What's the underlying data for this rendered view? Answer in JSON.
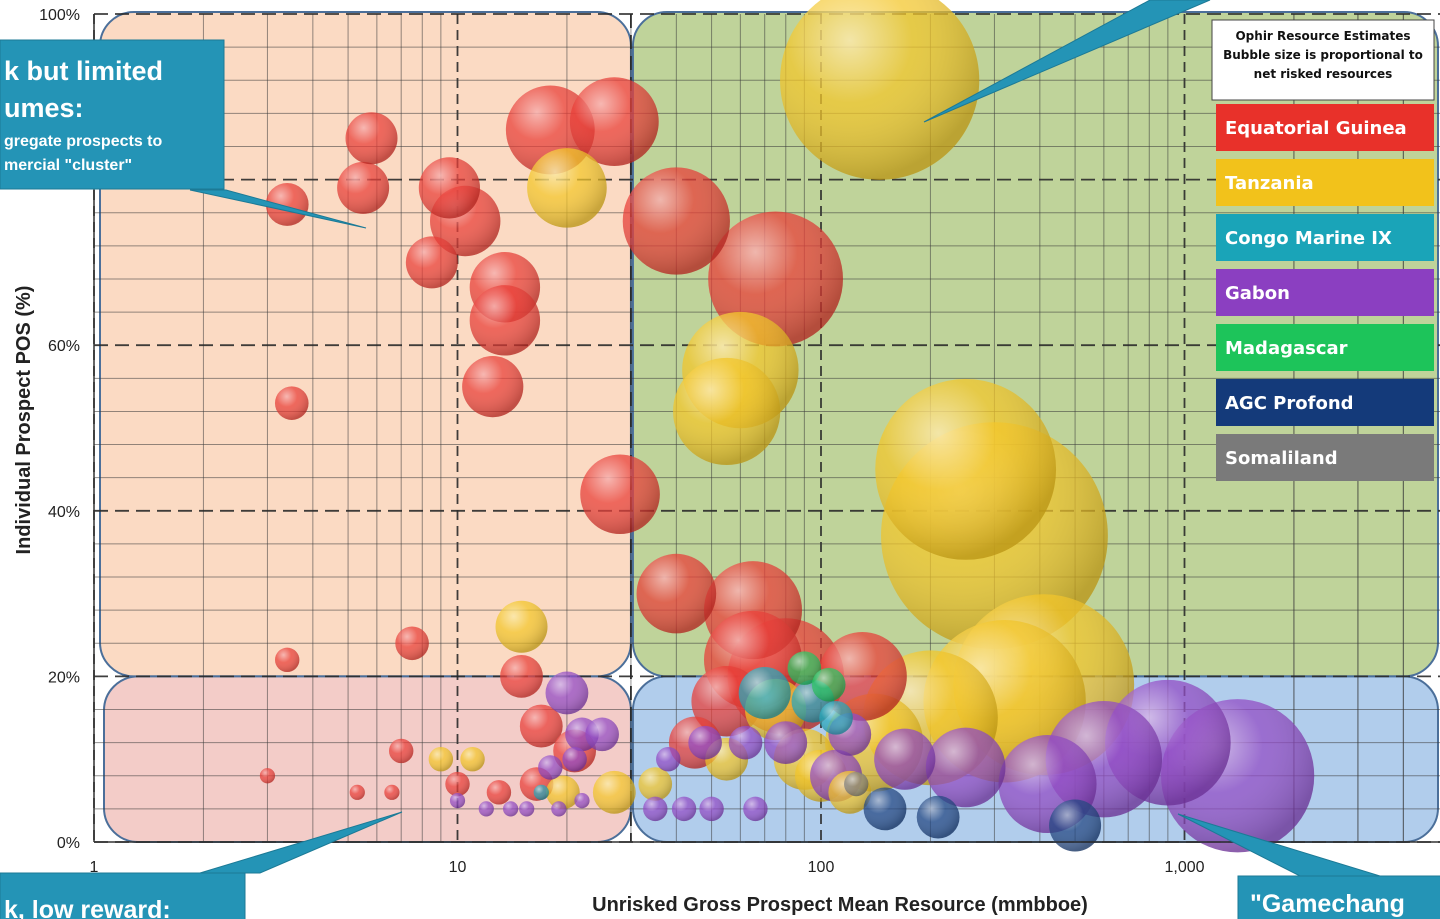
{
  "chart_data": {
    "type": "scatter",
    "subtype": "bubble",
    "title": "",
    "xlabel": "Unrisked Gross Prospect Mean Resource (mmbboe)",
    "ylabel": "Individual Prospect POS (%)",
    "x_scale": "log",
    "xlim": [
      1,
      4000
    ],
    "ylim": [
      0,
      100
    ],
    "x_ticks": [
      "1",
      "10",
      "100",
      "1,000"
    ],
    "y_ticks": [
      "0%",
      "20%",
      "40%",
      "60%",
      "100%"
    ],
    "grid": true,
    "legend_placement": "top-right",
    "legend_title": [
      "Ophir Resource Estimates",
      "Bubble size is proportional to",
      "net risked resources"
    ],
    "series": [
      {
        "name": "Equatorial Guinea",
        "color": "#e8312a"
      },
      {
        "name": "Tanzania",
        "color": "#f2c21b"
      },
      {
        "name": "Congo Marine IX",
        "color": "#1aa4b8"
      },
      {
        "name": "Gabon",
        "color": "#8b3fc1"
      },
      {
        "name": "Madagascar",
        "color": "#1dc45a"
      },
      {
        "name": "AGC Profond",
        "color": "#143a7a"
      },
      {
        "name": "Somaliland",
        "color": "#7a7a7a"
      }
    ],
    "quadrants": [
      {
        "name": "top-left",
        "fill": "#fbd6bd"
      },
      {
        "name": "top-right",
        "fill": "#b8ce8f"
      },
      {
        "name": "bottom-left",
        "fill": "#f2c6c2"
      },
      {
        "name": "bottom-right",
        "fill": "#a9c8ea"
      }
    ],
    "callouts": [
      {
        "lines": [
          "k but limited",
          "umes:"
        ],
        "sub": [
          "gregate prospects to",
          "mercial \"cluster\""
        ]
      },
      {
        "lines": [
          "k, low reward:"
        ]
      },
      {
        "lines": [
          "\"Gamechang"
        ]
      },
      {
        "lines": []
      }
    ],
    "points": [
      {
        "series": "Equatorial Guinea",
        "x": 3.4,
        "y": 77,
        "size": 4
      },
      {
        "series": "Equatorial Guinea",
        "x": 5.5,
        "y": 79,
        "size": 5
      },
      {
        "series": "Equatorial Guinea",
        "x": 5.8,
        "y": 85,
        "size": 5
      },
      {
        "series": "Equatorial Guinea",
        "x": 9.5,
        "y": 79,
        "size": 6
      },
      {
        "series": "Equatorial Guinea",
        "x": 10.5,
        "y": 75,
        "size": 7
      },
      {
        "series": "Equatorial Guinea",
        "x": 8.5,
        "y": 70,
        "size": 5
      },
      {
        "series": "Equatorial Guinea",
        "x": 18,
        "y": 86,
        "size": 9
      },
      {
        "series": "Equatorial Guinea",
        "x": 27,
        "y": 87,
        "size": 9
      },
      {
        "series": "Equatorial Guinea",
        "x": 13.5,
        "y": 67,
        "size": 7
      },
      {
        "series": "Equatorial Guinea",
        "x": 13.5,
        "y": 63,
        "size": 7
      },
      {
        "series": "Equatorial Guinea",
        "x": 12.5,
        "y": 55,
        "size": 6
      },
      {
        "series": "Equatorial Guinea",
        "x": 3.5,
        "y": 53,
        "size": 3
      },
      {
        "series": "Equatorial Guinea",
        "x": 28,
        "y": 42,
        "size": 8
      },
      {
        "series": "Equatorial Guinea",
        "x": 40,
        "y": 75,
        "size": 11
      },
      {
        "series": "Equatorial Guinea",
        "x": 75,
        "y": 68,
        "size": 14
      },
      {
        "series": "Equatorial Guinea",
        "x": 40,
        "y": 30,
        "size": 8
      },
      {
        "series": "Equatorial Guinea",
        "x": 65,
        "y": 28,
        "size": 10
      },
      {
        "series": "Equatorial Guinea",
        "x": 65,
        "y": 22,
        "size": 10
      },
      {
        "series": "Equatorial Guinea",
        "x": 80,
        "y": 20,
        "size": 12
      },
      {
        "series": "Equatorial Guinea",
        "x": 7.5,
        "y": 24,
        "size": 3
      },
      {
        "series": "Equatorial Guinea",
        "x": 3.4,
        "y": 22,
        "size": 2
      },
      {
        "series": "Equatorial Guinea",
        "x": 15,
        "y": 20,
        "size": 4
      },
      {
        "series": "Equatorial Guinea",
        "x": 17,
        "y": 14,
        "size": 4
      },
      {
        "series": "Equatorial Guinea",
        "x": 7,
        "y": 11,
        "size": 2
      },
      {
        "series": "Equatorial Guinea",
        "x": 21,
        "y": 11,
        "size": 4
      },
      {
        "series": "Equatorial Guinea",
        "x": 3,
        "y": 8,
        "size": 1
      },
      {
        "series": "Equatorial Guinea",
        "x": 10,
        "y": 7,
        "size": 2
      },
      {
        "series": "Equatorial Guinea",
        "x": 16.5,
        "y": 7,
        "size": 3
      },
      {
        "series": "Equatorial Guinea",
        "x": 5.3,
        "y": 6,
        "size": 1
      },
      {
        "series": "Equatorial Guinea",
        "x": 6.6,
        "y": 6,
        "size": 1
      },
      {
        "series": "Equatorial Guinea",
        "x": 13,
        "y": 6,
        "size": 2
      },
      {
        "series": "Equatorial Guinea",
        "x": 55,
        "y": 17,
        "size": 7
      },
      {
        "series": "Equatorial Guinea",
        "x": 130,
        "y": 20,
        "size": 9
      },
      {
        "series": "Equatorial Guinea",
        "x": 45,
        "y": 12,
        "size": 5
      },
      {
        "series": "Tanzania",
        "x": 20,
        "y": 79,
        "size": 8
      },
      {
        "series": "Tanzania",
        "x": 15,
        "y": 26,
        "size": 5
      },
      {
        "series": "Tanzania",
        "x": 9,
        "y": 10,
        "size": 2
      },
      {
        "series": "Tanzania",
        "x": 11,
        "y": 10,
        "size": 2
      },
      {
        "series": "Tanzania",
        "x": 19.5,
        "y": 6,
        "size": 3
      },
      {
        "series": "Tanzania",
        "x": 27,
        "y": 6,
        "size": 4
      },
      {
        "series": "Tanzania",
        "x": 145,
        "y": 92,
        "size": 21
      },
      {
        "series": "Tanzania",
        "x": 60,
        "y": 57,
        "size": 12
      },
      {
        "series": "Tanzania",
        "x": 55,
        "y": 52,
        "size": 11
      },
      {
        "series": "Tanzania",
        "x": 250,
        "y": 45,
        "size": 19
      },
      {
        "series": "Tanzania",
        "x": 300,
        "y": 37,
        "size": 24
      },
      {
        "series": "Tanzania",
        "x": 410,
        "y": 19,
        "size": 19
      },
      {
        "series": "Tanzania",
        "x": 320,
        "y": 17,
        "size": 17
      },
      {
        "series": "Tanzania",
        "x": 200,
        "y": 15,
        "size": 14
      },
      {
        "series": "Tanzania",
        "x": 140,
        "y": 12,
        "size": 10
      },
      {
        "series": "Tanzania",
        "x": 75,
        "y": 16,
        "size": 6
      },
      {
        "series": "Tanzania",
        "x": 90,
        "y": 10,
        "size": 6
      },
      {
        "series": "Tanzania",
        "x": 55,
        "y": 10,
        "size": 4
      },
      {
        "series": "Tanzania",
        "x": 100,
        "y": 8,
        "size": 5
      },
      {
        "series": "Tanzania",
        "x": 120,
        "y": 6,
        "size": 4
      },
      {
        "series": "Tanzania",
        "x": 35,
        "y": 7,
        "size": 3
      },
      {
        "series": "Congo Marine IX",
        "x": 70,
        "y": 18,
        "size": 5
      },
      {
        "series": "Congo Marine IX",
        "x": 95,
        "y": 17,
        "size": 4
      },
      {
        "series": "Congo Marine IX",
        "x": 17,
        "y": 6,
        "size": 1
      },
      {
        "series": "Congo Marine IX",
        "x": 110,
        "y": 15,
        "size": 3
      },
      {
        "series": "Gabon",
        "x": 1400,
        "y": 8,
        "size": 16
      },
      {
        "series": "Gabon",
        "x": 900,
        "y": 12,
        "size": 13
      },
      {
        "series": "Gabon",
        "x": 600,
        "y": 10,
        "size": 12
      },
      {
        "series": "Gabon",
        "x": 420,
        "y": 7,
        "size": 10
      },
      {
        "series": "Gabon",
        "x": 250,
        "y": 9,
        "size": 8
      },
      {
        "series": "Gabon",
        "x": 170,
        "y": 10,
        "size": 6
      },
      {
        "series": "Gabon",
        "x": 110,
        "y": 8,
        "size": 5
      },
      {
        "series": "Gabon",
        "x": 80,
        "y": 12,
        "size": 4
      },
      {
        "series": "Gabon",
        "x": 20,
        "y": 18,
        "size": 4
      },
      {
        "series": "Gabon",
        "x": 22,
        "y": 13,
        "size": 3
      },
      {
        "series": "Gabon",
        "x": 25,
        "y": 13,
        "size": 3
      },
      {
        "series": "Gabon",
        "x": 18,
        "y": 9,
        "size": 2
      },
      {
        "series": "Gabon",
        "x": 21,
        "y": 10,
        "size": 2
      },
      {
        "series": "Gabon",
        "x": 10,
        "y": 5,
        "size": 1
      },
      {
        "series": "Gabon",
        "x": 12,
        "y": 4,
        "size": 1
      },
      {
        "series": "Gabon",
        "x": 14,
        "y": 4,
        "size": 1
      },
      {
        "series": "Gabon",
        "x": 15.5,
        "y": 4,
        "size": 1
      },
      {
        "series": "Gabon",
        "x": 19,
        "y": 4,
        "size": 1
      },
      {
        "series": "Gabon",
        "x": 22,
        "y": 5,
        "size": 1
      },
      {
        "series": "Gabon",
        "x": 35,
        "y": 4,
        "size": 2
      },
      {
        "series": "Gabon",
        "x": 42,
        "y": 4,
        "size": 2
      },
      {
        "series": "Gabon",
        "x": 50,
        "y": 4,
        "size": 2
      },
      {
        "series": "Gabon",
        "x": 66,
        "y": 4,
        "size": 2
      },
      {
        "series": "Gabon",
        "x": 38,
        "y": 10,
        "size": 2
      },
      {
        "series": "Gabon",
        "x": 48,
        "y": 12,
        "size": 3
      },
      {
        "series": "Gabon",
        "x": 62,
        "y": 12,
        "size": 3
      },
      {
        "series": "Gabon",
        "x": 120,
        "y": 13,
        "size": 4
      },
      {
        "series": "Madagascar",
        "x": 90,
        "y": 21,
        "size": 3
      },
      {
        "series": "Madagascar",
        "x": 105,
        "y": 19,
        "size": 3
      },
      {
        "series": "AGC Profond",
        "x": 150,
        "y": 4,
        "size": 4
      },
      {
        "series": "AGC Profond",
        "x": 210,
        "y": 3,
        "size": 4
      },
      {
        "series": "AGC Profond",
        "x": 500,
        "y": 2,
        "size": 5
      },
      {
        "series": "Somaliland",
        "x": 125,
        "y": 7,
        "size": 2
      }
    ]
  }
}
